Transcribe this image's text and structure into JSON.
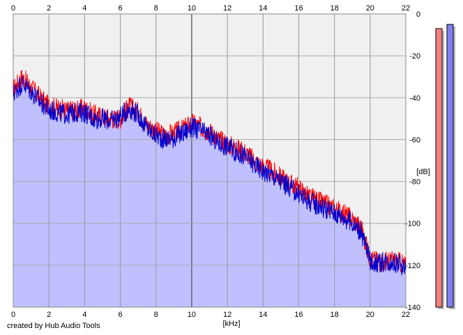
{
  "credit": "created by Hub Audio Tools",
  "chart_data": {
    "type": "line",
    "xlabel": "[kHz]",
    "ylabel": "[dB]",
    "xlim": [
      0,
      22
    ],
    "ylim": [
      -140,
      0
    ],
    "x_ticks": [
      0,
      2,
      4,
      6,
      8,
      10,
      12,
      14,
      16,
      18,
      20,
      22
    ],
    "y_ticks": [
      0,
      -20,
      -40,
      -60,
      -80,
      -100,
      -120,
      -140
    ],
    "grid": true,
    "fill_color": "#c0c0ff",
    "background": "#f0f0f0",
    "series": [
      {
        "color": "#ff0000",
        "x": [
          0,
          0.5,
          1,
          1.5,
          2,
          2.5,
          3,
          3.5,
          4,
          4.5,
          5,
          5.5,
          6,
          6.5,
          7,
          7.5,
          8,
          8.5,
          9,
          9.5,
          10,
          10.5,
          11,
          11.5,
          12,
          12.5,
          13,
          13.5,
          14,
          14.5,
          15,
          15.5,
          16,
          16.5,
          17,
          17.5,
          18,
          18.5,
          19,
          19.5,
          20,
          20.5,
          21,
          21.5,
          22
        ],
        "values": [
          -36,
          -30,
          -35,
          -40,
          -44,
          -45,
          -46,
          -46,
          -45,
          -48,
          -49,
          -50,
          -50,
          -44,
          -47,
          -53,
          -56,
          -58,
          -57,
          -55,
          -52,
          -54,
          -56,
          -60,
          -62,
          -64,
          -66,
          -70,
          -73,
          -75,
          -78,
          -81,
          -83,
          -87,
          -89,
          -91,
          -93,
          -95,
          -98,
          -102,
          -117,
          -118,
          -118,
          -118,
          -120
        ]
      },
      {
        "color": "#0000cc",
        "x": [
          0,
          0.5,
          1,
          1.5,
          2,
          2.5,
          3,
          3.5,
          4,
          4.5,
          5,
          5.5,
          6,
          6.5,
          7,
          7.5,
          8,
          8.5,
          9,
          9.5,
          10,
          10.5,
          11,
          11.5,
          12,
          12.5,
          13,
          13.5,
          14,
          14.5,
          15,
          15.5,
          16,
          16.5,
          17,
          17.5,
          18,
          18.5,
          19,
          19.5,
          20,
          20.5,
          21,
          21.5,
          22
        ],
        "values": [
          -38,
          -33,
          -37,
          -42,
          -46,
          -47,
          -48,
          -47,
          -47,
          -50,
          -50,
          -51,
          -49,
          -45,
          -48,
          -55,
          -58,
          -60,
          -59,
          -57,
          -54,
          -56,
          -58,
          -62,
          -63,
          -66,
          -68,
          -72,
          -75,
          -77,
          -80,
          -83,
          -86,
          -89,
          -91,
          -93,
          -95,
          -97,
          -100,
          -104,
          -118,
          -119,
          -118,
          -119,
          -121
        ]
      }
    ],
    "level_meters": [
      {
        "color": "#f08080",
        "value_db": -7
      },
      {
        "color": "#8080f0",
        "value_db": -5
      }
    ]
  }
}
